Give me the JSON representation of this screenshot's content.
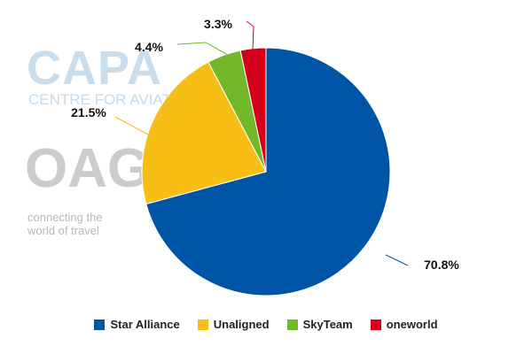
{
  "watermarks": {
    "capa": "CAPA",
    "capa_sub": "CENTRE FOR AVIATION",
    "oag": "OAG",
    "oag_sub1": "connecting the",
    "oag_sub2": "world of travel"
  },
  "chart_data": {
    "type": "pie",
    "title": "",
    "start_angle_deg": 0,
    "direction": "clockwise",
    "legend_position": "bottom",
    "slices": [
      {
        "name": "Star Alliance",
        "value": 70.8,
        "label": "70.8%",
        "color": "#0054a6"
      },
      {
        "name": "Unaligned",
        "value": 21.5,
        "label": "21.5%",
        "color": "#f7bf15"
      },
      {
        "name": "SkyTeam",
        "value": 4.4,
        "label": "4.4%",
        "color": "#73b72a"
      },
      {
        "name": "oneworld",
        "value": 3.3,
        "label": "3.3%",
        "color": "#d6001c"
      }
    ]
  }
}
